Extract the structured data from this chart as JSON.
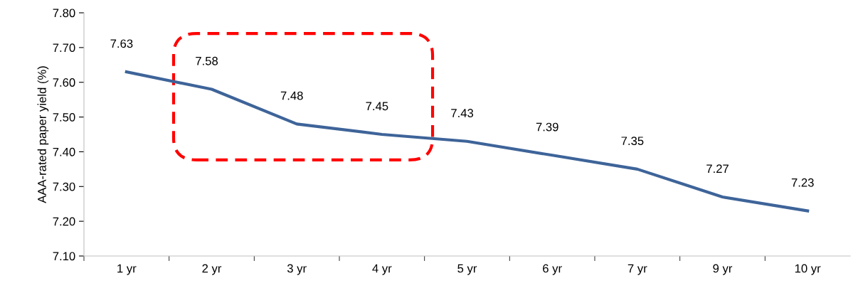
{
  "chart_data": {
    "type": "line",
    "ylabel": "AAA-rated paper yield (%)",
    "categories": [
      "1 yr",
      "2 yr",
      "3 yr",
      "4 yr",
      "5 yr",
      "6 yr",
      "7 yr",
      "9 yr",
      "10 yr"
    ],
    "series": [
      {
        "color": "#3e6499",
        "values": [
          7.63,
          7.58,
          7.48,
          7.45,
          7.43,
          7.39,
          7.35,
          7.27,
          7.23
        ]
      }
    ],
    "ylim": [
      7.1,
      7.8
    ],
    "yticks": [
      {
        "value": 7.1,
        "label": "7.10"
      },
      {
        "value": 7.2,
        "label": "7.20"
      },
      {
        "value": 7.3,
        "label": "7.30"
      },
      {
        "value": 7.4,
        "label": "7.40"
      },
      {
        "value": 7.5,
        "label": "7.50"
      },
      {
        "value": 7.6,
        "label": "7.60"
      },
      {
        "value": 7.7,
        "label": "7.70"
      },
      {
        "value": 7.8,
        "label": "7.80"
      }
    ],
    "data_labels": true,
    "grid": false,
    "legend": false,
    "marker": "none",
    "line_style": "solid"
  }
}
